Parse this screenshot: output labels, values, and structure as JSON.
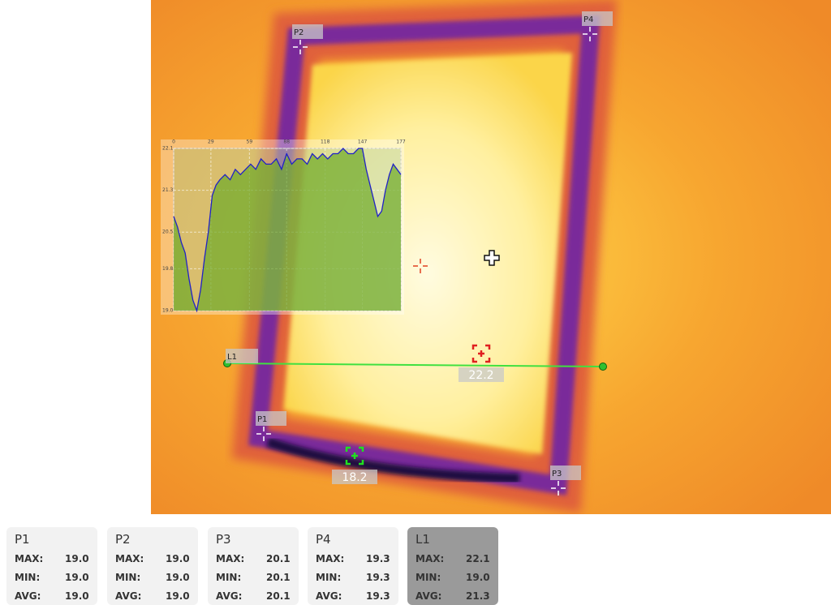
{
  "markers": [
    {
      "label": "P1"
    },
    {
      "label": "P2"
    },
    {
      "label": "P3"
    },
    {
      "label": "P4"
    }
  ],
  "line": {
    "label": "L1"
  },
  "hot_spot": {
    "value": "22.2"
  },
  "cold_spot": {
    "value": "18.2"
  },
  "chart_data": {
    "type": "line",
    "color": "#2020c8",
    "x": [
      0,
      3,
      6,
      9,
      12,
      15,
      18,
      21,
      24,
      27,
      30,
      33,
      36,
      40,
      44,
      48,
      52,
      56,
      60,
      64,
      68,
      72,
      76,
      80,
      84,
      88,
      92,
      96,
      100,
      104,
      108,
      112,
      116,
      120,
      124,
      128,
      132,
      136,
      140,
      144,
      147,
      150,
      153,
      156,
      159,
      162,
      165,
      168,
      171,
      174,
      177
    ],
    "values": [
      20.8,
      20.6,
      20.3,
      20.1,
      19.6,
      19.2,
      19.0,
      19.4,
      20.0,
      20.5,
      21.2,
      21.4,
      21.5,
      21.6,
      21.5,
      21.7,
      21.6,
      21.7,
      21.8,
      21.7,
      21.9,
      21.8,
      21.8,
      21.9,
      21.7,
      22.0,
      21.8,
      21.9,
      21.9,
      21.8,
      22.0,
      21.9,
      22.0,
      21.9,
      22.0,
      22.0,
      22.1,
      22.0,
      22.0,
      22.1,
      22.1,
      21.7,
      21.4,
      21.1,
      20.8,
      20.9,
      21.3,
      21.6,
      21.8,
      21.7,
      21.6
    ],
    "xlim": [
      0,
      177
    ],
    "ylim": [
      19.0,
      22.1
    ],
    "xticks": [
      0,
      29,
      59,
      88,
      118,
      147,
      177
    ],
    "yticks": [
      {
        "value": 19.0,
        "label": "19.0"
      },
      19.8,
      20.5,
      21.3,
      22.1
    ],
    "grid": true
  },
  "cards": [
    {
      "title": "P1",
      "rows": [
        {
          "label": "MAX:",
          "value": "19.0"
        },
        {
          "label": "MIN:",
          "value": "19.0"
        },
        {
          "label": "AVG:",
          "value": "19.0"
        }
      ]
    },
    {
      "title": "P2",
      "rows": [
        {
          "label": "MAX:",
          "value": "19.0"
        },
        {
          "label": "MIN:",
          "value": "19.0"
        },
        {
          "label": "AVG:",
          "value": "19.0"
        }
      ]
    },
    {
      "title": "P3",
      "rows": [
        {
          "label": "MAX:",
          "value": "20.1"
        },
        {
          "label": "MIN:",
          "value": "20.1"
        },
        {
          "label": "AVG:",
          "value": "20.1"
        }
      ]
    },
    {
      "title": "P4",
      "rows": [
        {
          "label": "MAX:",
          "value": "19.3"
        },
        {
          "label": "MIN:",
          "value": "19.3"
        },
        {
          "label": "AVG:",
          "value": "19.3"
        }
      ]
    },
    {
      "title": "L1",
      "rows": [
        {
          "label": "MAX:",
          "value": "22.1"
        },
        {
          "label": "MIN:",
          "value": "19.0"
        },
        {
          "label": "AVG:",
          "value": "21.3"
        }
      ]
    }
  ]
}
